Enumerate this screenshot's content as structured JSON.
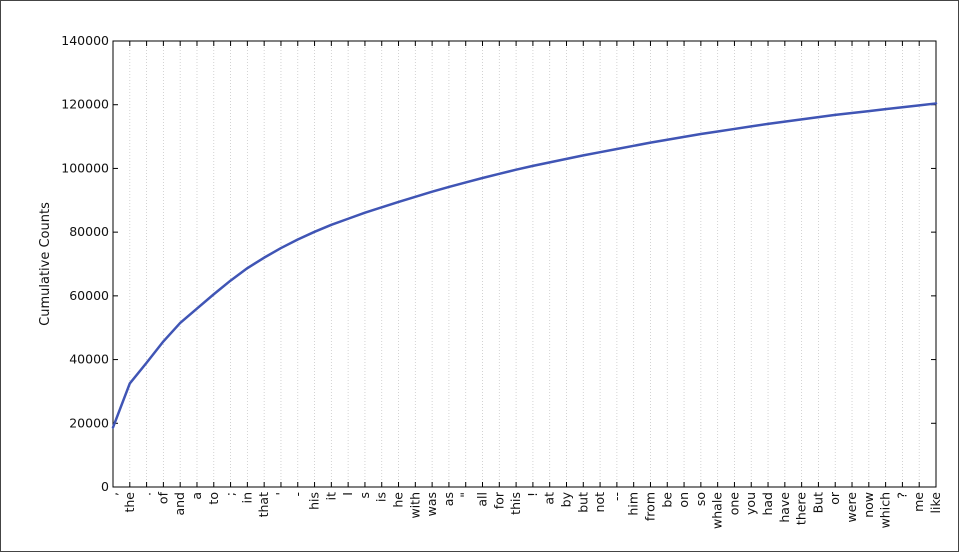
{
  "chart_data": {
    "type": "line",
    "ylabel": "Cumulative Counts",
    "xlabel": "",
    "title": "",
    "ylim": [
      0,
      140000
    ],
    "yticks": [
      0,
      20000,
      40000,
      60000,
      80000,
      100000,
      120000,
      140000
    ],
    "grid": "vertical dotted lines at each category",
    "categories": [
      ",",
      "the",
      ".",
      "of",
      "and",
      "a",
      "to",
      ";",
      "in",
      "that",
      "'",
      "-",
      "his",
      "it",
      "I",
      "s",
      "is",
      "he",
      "with",
      "was",
      "as",
      "\"",
      "all",
      "for",
      "this",
      "!",
      "at",
      "by",
      "but",
      "not",
      "--",
      "him",
      "from",
      "be",
      "on",
      "so",
      "whale",
      "one",
      "you",
      "had",
      "have",
      "there",
      "But",
      "or",
      "were",
      "now",
      "which",
      "?",
      "me",
      "like"
    ],
    "series": [
      {
        "name": "",
        "color": "#4055b5",
        "values": [
          18700,
          32500,
          39000,
          45700,
          51500,
          56000,
          60500,
          64800,
          68700,
          72000,
          75000,
          77700,
          80100,
          82300,
          84200,
          86100,
          87800,
          89500,
          91100,
          92700,
          94200,
          95600,
          97000,
          98300,
          99600,
          100800,
          101900,
          103000,
          104100,
          105100,
          106100,
          107100,
          108100,
          109000,
          109900,
          110800,
          111600,
          112400,
          113200,
          114000,
          114700,
          115400,
          116100,
          116800,
          117400,
          118000,
          118600,
          119200,
          119800,
          120400
        ]
      }
    ]
  }
}
